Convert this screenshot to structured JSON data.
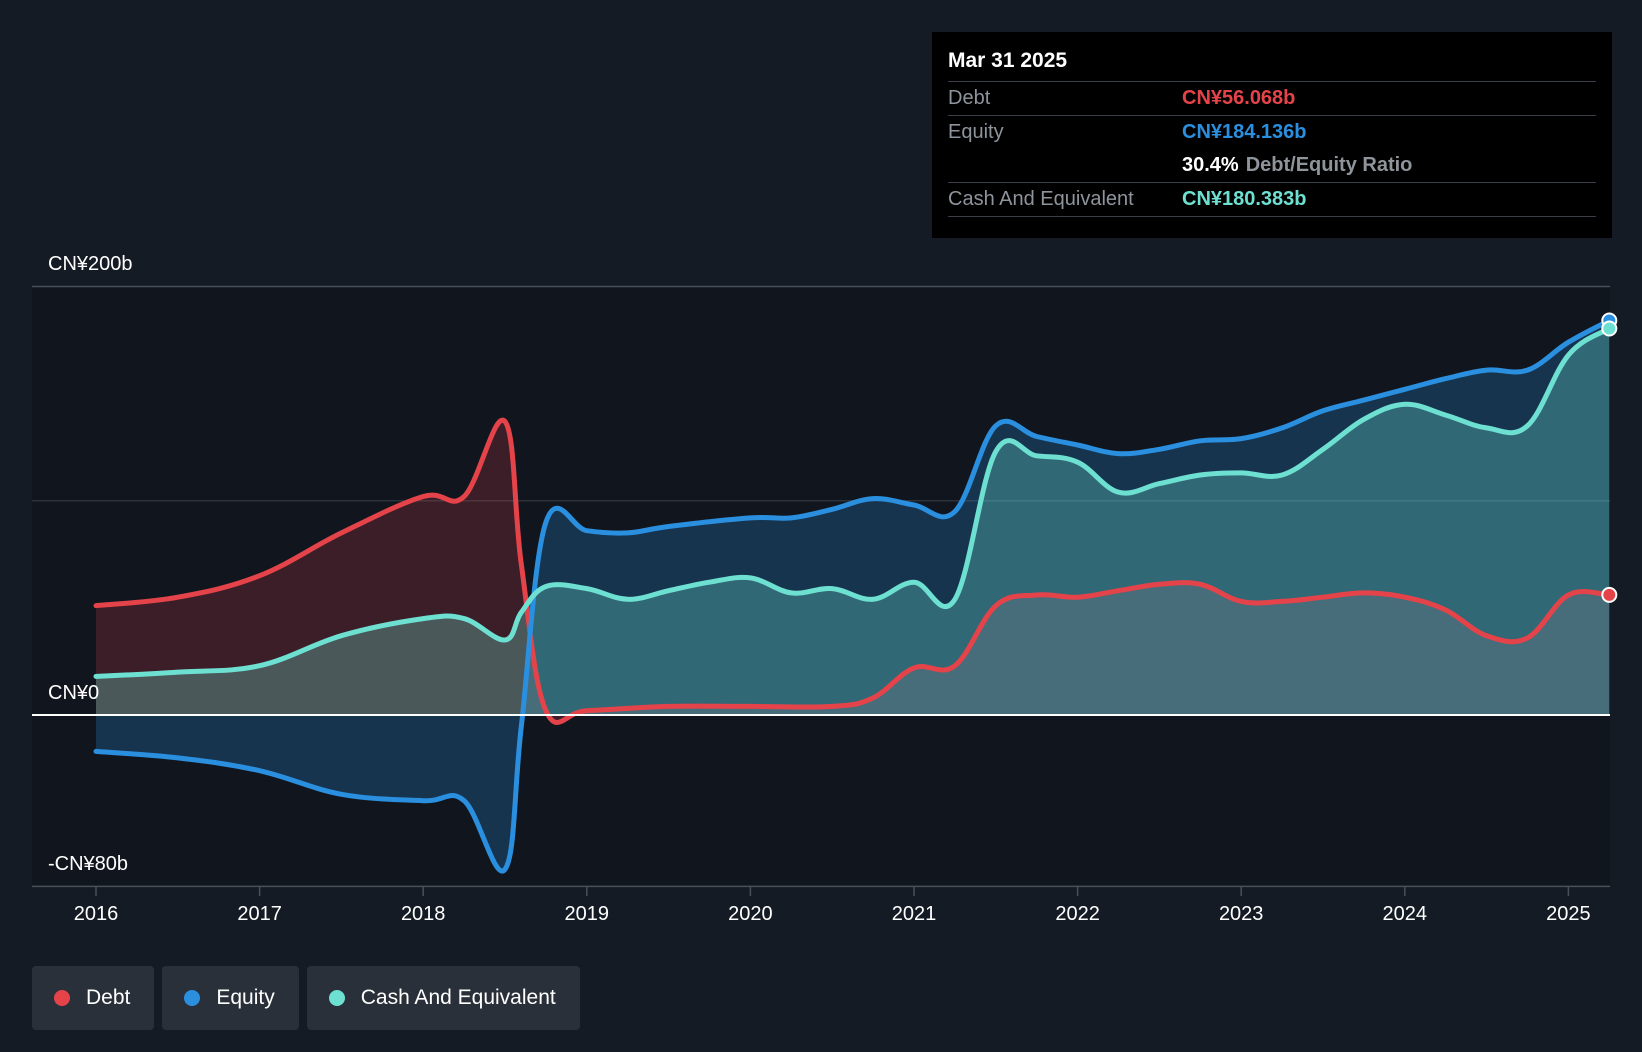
{
  "chart_data": {
    "type": "area",
    "title": "",
    "xlabel": "",
    "ylabel": "",
    "ylim": [
      -80,
      200
    ],
    "y_unit": "CN¥b",
    "y_tick_labels": [
      "CN¥200b",
      "CN¥0",
      "-CN¥80b"
    ],
    "y_ticks": [
      200,
      0,
      -80
    ],
    "x_tick_labels": [
      "2016",
      "2017",
      "2018",
      "2019",
      "2020",
      "2021",
      "2022",
      "2023",
      "2024",
      "2025"
    ],
    "xlim": [
      2016.0,
      2025.25
    ],
    "grid": "horizontal",
    "legend_position": "bottom-left",
    "colors": {
      "debt": "#e5434a",
      "equity": "#2b8fe0",
      "cash": "#6de0d2",
      "background": "#151b24"
    },
    "series": [
      {
        "name": "Debt",
        "x": [
          2016.0,
          2016.5,
          2017.0,
          2017.5,
          2018.0,
          2018.25,
          2018.5,
          2018.6,
          2018.75,
          2019.0,
          2019.5,
          2020.0,
          2020.5,
          2020.75,
          2021.0,
          2021.25,
          2021.5,
          2021.75,
          2022.0,
          2022.25,
          2022.5,
          2022.75,
          2023.0,
          2023.25,
          2023.5,
          2023.75,
          2024.0,
          2024.25,
          2024.5,
          2024.75,
          2025.0,
          2025.25
        ],
        "values": [
          51,
          55,
          65,
          85,
          102,
          102,
          137,
          70,
          2,
          2,
          4,
          4,
          4,
          8,
          22,
          23,
          51,
          56,
          55,
          58,
          61,
          61,
          53,
          53,
          55,
          57,
          55,
          49,
          37,
          36,
          56,
          56.068
        ]
      },
      {
        "name": "Equity",
        "x": [
          2016.0,
          2016.5,
          2017.0,
          2017.5,
          2018.0,
          2018.25,
          2018.5,
          2018.6,
          2018.75,
          2019.0,
          2019.25,
          2019.5,
          2020.0,
          2020.25,
          2020.5,
          2020.75,
          2021.0,
          2021.25,
          2021.5,
          2021.75,
          2022.0,
          2022.25,
          2022.5,
          2022.75,
          2023.0,
          2023.25,
          2023.5,
          2023.75,
          2024.0,
          2024.25,
          2024.5,
          2024.75,
          2025.0,
          2025.25
        ],
        "values": [
          -17,
          -20,
          -26,
          -37,
          -40,
          -40,
          -72,
          -5,
          90,
          86,
          85,
          88,
          92,
          92,
          96,
          101,
          98,
          95,
          135,
          130,
          126,
          122,
          124,
          128,
          129,
          134,
          142,
          147,
          152,
          157,
          161,
          161,
          174,
          184.136
        ]
      },
      {
        "name": "Cash And Equivalent",
        "x": [
          2016.0,
          2016.5,
          2017.0,
          2017.5,
          2018.0,
          2018.25,
          2018.5,
          2018.6,
          2018.75,
          2019.0,
          2019.25,
          2019.5,
          2019.75,
          2020.0,
          2020.25,
          2020.5,
          2020.75,
          2021.0,
          2021.25,
          2021.5,
          2021.75,
          2022.0,
          2022.25,
          2022.5,
          2022.75,
          2023.0,
          2023.25,
          2023.5,
          2023.75,
          2024.0,
          2024.25,
          2024.5,
          2024.75,
          2025.0,
          2025.25
        ],
        "values": [
          18,
          20,
          23,
          37,
          45,
          45,
          35,
          48,
          60,
          59,
          54,
          58,
          62,
          64,
          57,
          59,
          54,
          62,
          54,
          123,
          121,
          118,
          104,
          108,
          112,
          113,
          112,
          124,
          138,
          145,
          140,
          134,
          135,
          168,
          180.383
        ]
      }
    ],
    "tooltip": {
      "date": "Mar 31 2025",
      "rows": [
        {
          "key": "Debt",
          "value": "CN¥56.068b"
        },
        {
          "key": "Equity",
          "value": "CN¥184.136b"
        },
        {
          "ratio_value": "30.4%",
          "ratio_label": "Debt/Equity Ratio"
        },
        {
          "key": "Cash And Equivalent",
          "value": "CN¥180.383b"
        }
      ]
    }
  },
  "legend": [
    {
      "label": "Debt",
      "color": "#e5434a"
    },
    {
      "label": "Equity",
      "color": "#2b8fe0"
    },
    {
      "label": "Cash And Equivalent",
      "color": "#6de0d2"
    }
  ]
}
